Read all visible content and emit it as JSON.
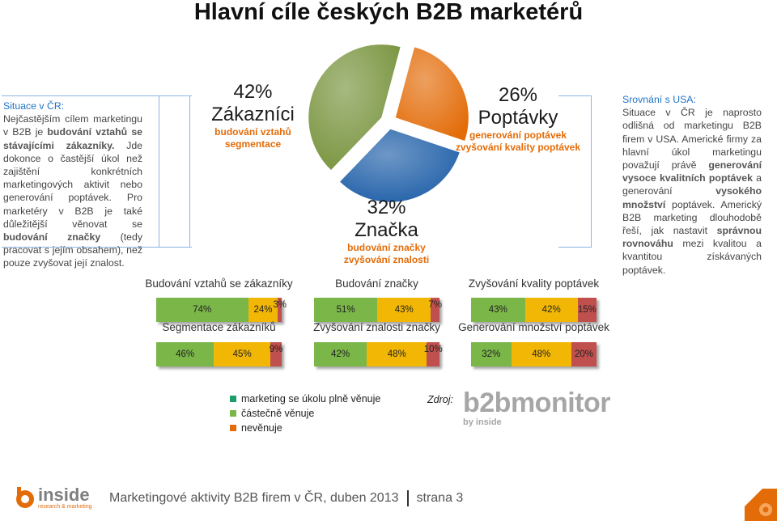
{
  "title": "Hlavní cíle českých B2B marketérů",
  "left_text": {
    "heading": "Situace v ČR:",
    "p1a": "Nejčastějším cílem marketingu v B2B je ",
    "p1b": "budování vztahů se stávajícími zákazníky.",
    "p2": " Jde dokonce o častější úkol než zajištění konkrétních marketingových aktivit nebo generování poptávek. Pro marketéry v B2B je také důležitější věnovat se ",
    "p3": "budování značky",
    "p4": " (tedy pracovat s jejím obsahem), než pouze zvyšovat její znalost."
  },
  "right_text": {
    "heading": "Srovnání s USA:",
    "t1": "Situace v ČR je naprosto odlišná od marketingu B2B firem v USA. Americké firmy za hlavní úkol marketingu považují právě ",
    "t2": "generování vysoce kvalitních poptávek",
    "t3": " a generování ",
    "t4": "vysokého množství",
    "t5": " poptávek. Americký B2B marketing dlouhodobě řeší, jak nastavit ",
    "t6": "správnou rovnováhu",
    "t7": " mezi kvalitou a kvantitou získávaných poptávek."
  },
  "chart_data": [
    {
      "type": "pie",
      "slices": [
        {
          "label": "Zákazníci",
          "value": 42,
          "pct_text": "42%",
          "sub": [
            "budování vztahů",
            "segmentace"
          ],
          "color": "#77933c"
        },
        {
          "label": "Poptávky",
          "value": 26,
          "pct_text": "26%",
          "sub": [
            "generování poptávek",
            "zvyšování kvality poptávek"
          ],
          "color": "#e36c09"
        },
        {
          "label": "Značka",
          "value": 32,
          "pct_text": "32%",
          "sub": [
            "budování značky",
            "zvyšování znalosti"
          ],
          "color": "#1f5fa8"
        }
      ]
    },
    {
      "type": "bar",
      "orientation": "horizontal-stacked",
      "series_names": [
        "marketing se úkolu plně věnuje",
        "částečně věnuje",
        "nevěnuje"
      ],
      "series_colors": [
        "#7ab648",
        "#f2b705",
        "#c0504d"
      ],
      "bars": [
        {
          "title": "Budování vztahů se zákazníky",
          "values": [
            74,
            24,
            3
          ],
          "labels": [
            "74%",
            "24%",
            "3%"
          ]
        },
        {
          "title": "Segmentace zákazníků",
          "values": [
            46,
            45,
            9
          ],
          "labels": [
            "46%",
            "45%",
            "9%"
          ]
        },
        {
          "title": "Budování značky",
          "values": [
            51,
            43,
            7
          ],
          "labels": [
            "51%",
            "43%",
            "7%"
          ]
        },
        {
          "title": "Zvyšování znalosti značky",
          "values": [
            42,
            48,
            10
          ],
          "labels": [
            "42%",
            "48%",
            "10%"
          ]
        },
        {
          "title": "Zvyšování kvality poptávek",
          "values": [
            43,
            42,
            15
          ],
          "labels": [
            "43%",
            "42%",
            "15%"
          ]
        },
        {
          "title": "Generování množství poptávek",
          "values": [
            32,
            48,
            20
          ],
          "labels": [
            "32%",
            "48%",
            "20%"
          ]
        }
      ]
    }
  ],
  "legend": {
    "items": [
      "marketing se úkolu plně věnuje",
      "částečně věnuje",
      "nevěnuje"
    ],
    "colors": [
      "#1a9e6a",
      "#7ab648",
      "#e36c09"
    ]
  },
  "source_label": "Zdroj:",
  "source_logo": {
    "text": "b2bmonitor",
    "sub": "by inside"
  },
  "footer": {
    "logo_text": "inside",
    "logo_sub": "research & marketing",
    "text": "Marketingové aktivity B2B firem v ČR, duben 2013",
    "page": "strana 3"
  }
}
